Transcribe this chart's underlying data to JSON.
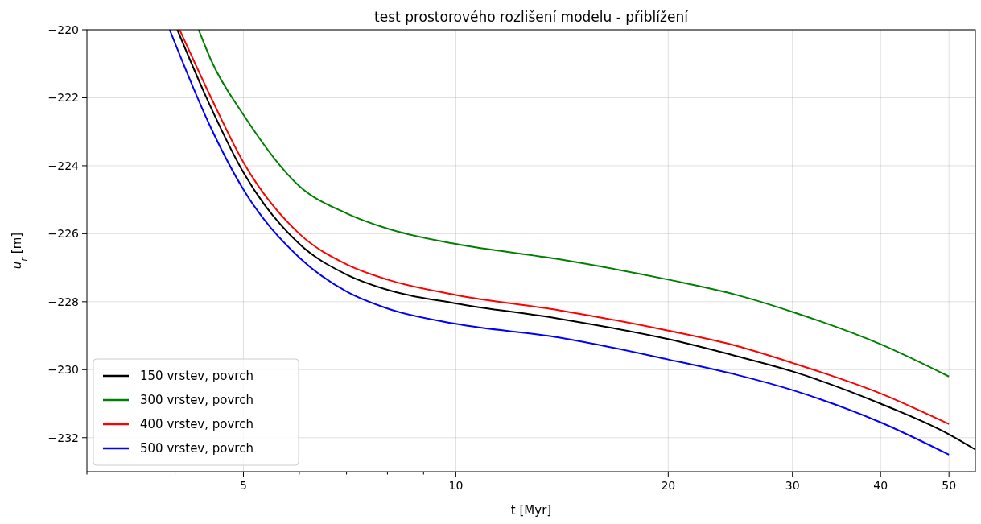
{
  "chart_data": {
    "type": "line",
    "title": "test prostorového rozlišení modelu - přiblížení",
    "xlabel": "t [Myr]",
    "ylabel": "u$_{r}$ [m]",
    "log": "x",
    "xlim": [
      3,
      54.5
    ],
    "ylim": [
      -233,
      -220
    ],
    "xticks": [
      {
        "value": 3,
        "label": null
      },
      {
        "value": 4,
        "label": null
      },
      5,
      {
        "value": 6,
        "label": null
      },
      {
        "value": 7,
        "label": null
      },
      {
        "value": 8,
        "label": null
      },
      {
        "value": 9,
        "label": null
      },
      10,
      20,
      30,
      40,
      50
    ],
    "yticks": [
      {
        "value": -232,
        "label": "−232"
      },
      {
        "value": -230,
        "label": "−230"
      },
      {
        "value": -228,
        "label": "−228"
      },
      {
        "value": -226,
        "label": "−226"
      },
      {
        "value": -224,
        "label": "−224"
      },
      {
        "value": -222,
        "label": "−222"
      },
      {
        "value": -220,
        "label": "−220"
      }
    ],
    "grid": true,
    "legend": "bottom left",
    "line_style": "solid",
    "marker": "none",
    "series": [
      {
        "name": "150 vrstev, povrch",
        "color": "#000000",
        "x": [
          4.03,
          4.5,
          5,
          6,
          7,
          8,
          10,
          14,
          20,
          25,
          30,
          40,
          50,
          54.5
        ],
        "values": [
          -220,
          -222.3,
          -224.2,
          -226.3,
          -227.2,
          -227.65,
          -228.05,
          -228.5,
          -229.1,
          -229.6,
          -230.05,
          -231.0,
          -231.9,
          -232.35
        ]
      },
      {
        "name": "300 vrstev, povrch",
        "color": "#008000",
        "x": [
          4.32,
          4.5,
          5,
          6,
          7,
          8,
          10,
          14,
          20,
          25,
          30,
          40,
          50
        ],
        "values": [
          -220,
          -220.9,
          -222.5,
          -224.6,
          -225.4,
          -225.85,
          -226.3,
          -226.75,
          -227.35,
          -227.8,
          -228.3,
          -229.25,
          -230.2
        ]
      },
      {
        "name": "400 vrstev, povrch",
        "color": "#ff0000",
        "x": [
          4.06,
          4.5,
          5,
          6,
          7,
          8,
          10,
          14,
          20,
          25,
          30,
          40,
          50
        ],
        "values": [
          -220,
          -222.0,
          -223.9,
          -226.0,
          -226.9,
          -227.35,
          -227.8,
          -228.25,
          -228.85,
          -229.3,
          -229.8,
          -230.7,
          -231.6
        ]
      },
      {
        "name": "500 vrstev, povrch",
        "color": "#0000ff",
        "x": [
          3.93,
          4.5,
          5,
          6,
          7,
          8,
          10,
          14,
          20,
          25,
          30,
          40,
          50
        ],
        "values": [
          -220,
          -222.9,
          -224.7,
          -226.7,
          -227.7,
          -228.2,
          -228.65,
          -229.05,
          -229.7,
          -230.15,
          -230.6,
          -231.55,
          -232.5
        ]
      }
    ]
  }
}
